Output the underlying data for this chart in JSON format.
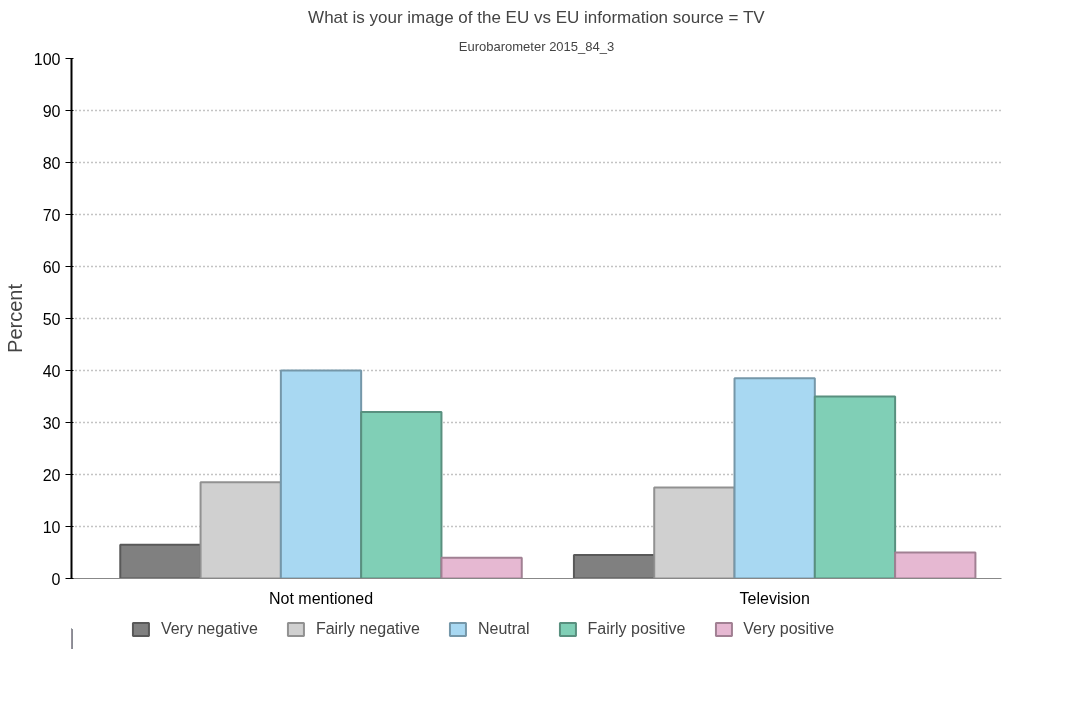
{
  "chart_data": {
    "type": "bar",
    "title": "What is your image of the EU vs EU information source = TV",
    "subtitle": "Eurobarometer 2015_84_3",
    "ylabel": "Percent",
    "categories": [
      "Not mentioned",
      "Television"
    ],
    "series": [
      {
        "name": "Very negative",
        "color": "#808080",
        "values": [
          6.5,
          4.5
        ]
      },
      {
        "name": "Fairly negative",
        "color": "#d0d0d0",
        "values": [
          18.5,
          17.5
        ]
      },
      {
        "name": "Neutral",
        "color": "#a8d8f2",
        "values": [
          40,
          38.5
        ]
      },
      {
        "name": "Fairly positive",
        "color": "#80cfb6",
        "values": [
          32,
          35
        ]
      },
      {
        "name": "Very positive",
        "color": "#e6b8d2",
        "values": [
          4,
          5
        ]
      }
    ],
    "ylim": [
      0,
      100
    ],
    "yticks": [
      0,
      10,
      20,
      30,
      40,
      50,
      60,
      70,
      80,
      90,
      100
    ],
    "grid": "y",
    "legend": "bottom"
  }
}
